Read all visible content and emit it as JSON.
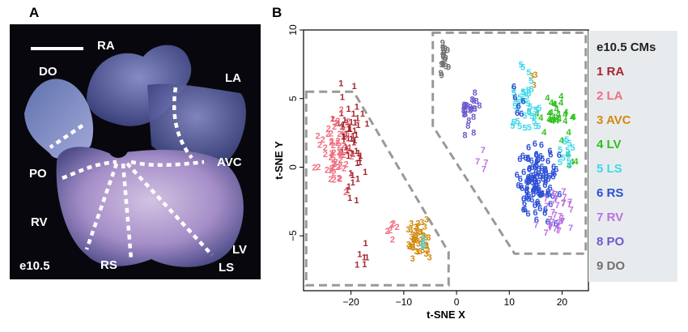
{
  "panel_a": {
    "letter": "A",
    "labels": {
      "ra": "RA",
      "do": "DO",
      "la": "LA",
      "avc": "AVC",
      "po": "PO",
      "rv": "RV",
      "lv": "LV",
      "rs": "RS",
      "ls": "LS",
      "stage": "e10.5"
    }
  },
  "panel_b": {
    "letter": "B",
    "legend_title": "e10.5 CMs",
    "legend": [
      {
        "label": "1 RA",
        "color": "#a8252e"
      },
      {
        "label": "2 LA",
        "color": "#ef6f80"
      },
      {
        "label": "3 AVC",
        "color": "#d18a10"
      },
      {
        "label": "4 LV",
        "color": "#2fbf1f"
      },
      {
        "label": "5 LS",
        "color": "#3fd8e8"
      },
      {
        "label": "6 RS",
        "color": "#2c4fd6"
      },
      {
        "label": "7 RV",
        "color": "#b872e0"
      },
      {
        "label": "8 PO",
        "color": "#6b58cf"
      },
      {
        "label": "9 DO",
        "color": "#707070"
      }
    ]
  },
  "chart_data": {
    "type": "scatter",
    "xlabel": "t-SNE X",
    "ylabel": "t-SNE Y",
    "xlim": [
      -29,
      25
    ],
    "ylim": [
      -9,
      10
    ],
    "xticks": [
      -20,
      -10,
      0,
      10,
      20
    ],
    "yticks": [
      -5,
      0,
      5,
      10
    ],
    "grid": false,
    "series": [
      {
        "name": "1 RA",
        "label": "1",
        "color": "#a8252e",
        "clusters": [
          {
            "cx": -20,
            "cy": 1.5,
            "sx": 2.2,
            "sy": 3.2,
            "n": 55
          },
          {
            "cx": -18,
            "cy": -6.5,
            "sx": 1.2,
            "sy": 1,
            "n": 6
          }
        ]
      },
      {
        "name": "2 LA",
        "label": "2",
        "color": "#ef6f80",
        "clusters": [
          {
            "cx": -23,
            "cy": 1,
            "sx": 2.5,
            "sy": 2,
            "n": 55
          },
          {
            "cx": -12,
            "cy": -4.8,
            "sx": 1.5,
            "sy": 1,
            "n": 6
          }
        ]
      },
      {
        "name": "3 AVC",
        "label": "3",
        "color": "#d18a10",
        "clusters": [
          {
            "cx": -7,
            "cy": -5.5,
            "sx": 2,
            "sy": 1,
            "n": 45
          },
          {
            "cx": 15,
            "cy": 6,
            "sx": 1,
            "sy": 1,
            "n": 3
          }
        ]
      },
      {
        "name": "4 LV",
        "label": "4",
        "color": "#2fbf1f",
        "clusters": [
          {
            "cx": 19,
            "cy": 3.5,
            "sx": 2.5,
            "sy": 1.2,
            "n": 28
          },
          {
            "cx": 22,
            "cy": -0.5,
            "sx": 1,
            "sy": 0.8,
            "n": 4
          }
        ]
      },
      {
        "name": "5 LS",
        "label": "5",
        "color": "#3fd8e8",
        "clusters": [
          {
            "cx": 13,
            "cy": 4.5,
            "sx": 2.5,
            "sy": 2,
            "n": 38
          },
          {
            "cx": 21,
            "cy": 1,
            "sx": 1.5,
            "sy": 1.2,
            "n": 12
          },
          {
            "cx": -6,
            "cy": -6,
            "sx": 0.8,
            "sy": 0.6,
            "n": 3
          }
        ]
      },
      {
        "name": "6 RS",
        "label": "6",
        "color": "#2c4fd6",
        "clusters": [
          {
            "cx": 15,
            "cy": -1.5,
            "sx": 3,
            "sy": 2.3,
            "n": 110
          },
          {
            "cx": 12,
            "cy": 4.5,
            "sx": 1.2,
            "sy": 1.5,
            "n": 6
          }
        ]
      },
      {
        "name": "7 RV",
        "label": "7",
        "color": "#b872e0",
        "clusters": [
          {
            "cx": 19,
            "cy": -3.5,
            "sx": 2.8,
            "sy": 1.3,
            "n": 35
          },
          {
            "cx": 5,
            "cy": 0.2,
            "sx": 1.2,
            "sy": 1,
            "n": 4
          }
        ]
      },
      {
        "name": "8 PO",
        "label": "8",
        "color": "#6b58cf",
        "clusters": [
          {
            "cx": 2.5,
            "cy": 3.8,
            "sx": 1.5,
            "sy": 1.2,
            "n": 24
          }
        ]
      },
      {
        "name": "9 DO",
        "label": "9",
        "color": "#707070",
        "clusters": [
          {
            "cx": -2.5,
            "cy": 7.8,
            "sx": 0.7,
            "sy": 1.2,
            "n": 18
          }
        ]
      }
    ]
  }
}
